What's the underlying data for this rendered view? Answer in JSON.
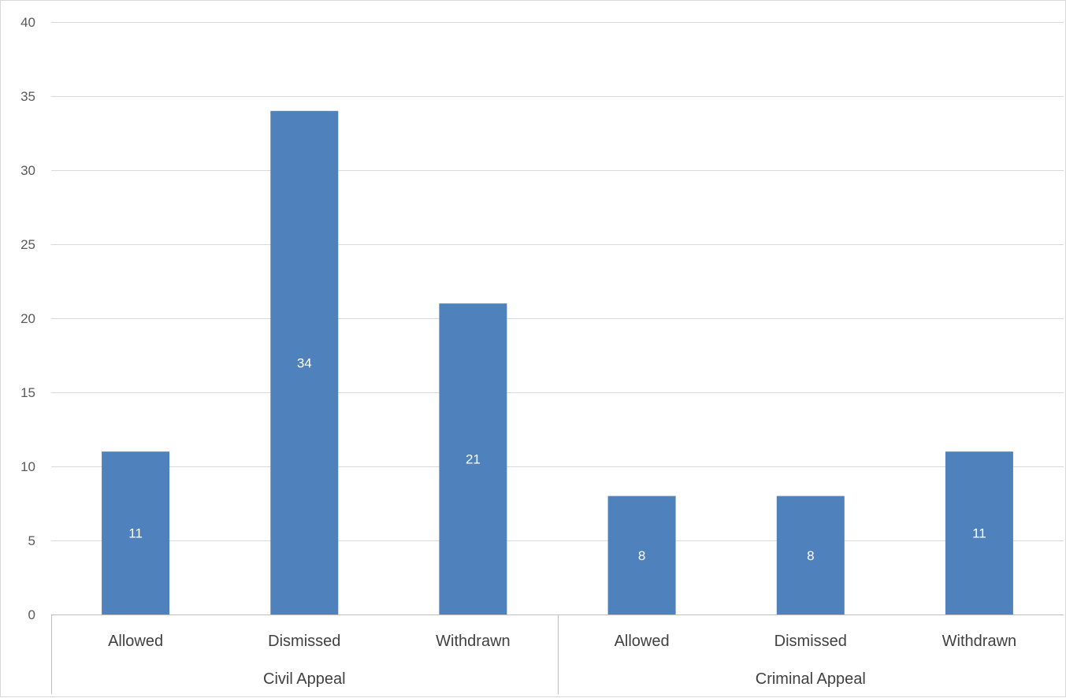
{
  "chart_data": {
    "type": "bar",
    "groups": [
      {
        "name": "Civil Appeal",
        "categories": [
          "Allowed",
          "Dismissed",
          "Withdrawn"
        ],
        "values": [
          11,
          34,
          21
        ]
      },
      {
        "name": "Criminal Appeal",
        "categories": [
          "Allowed",
          "Dismissed",
          "Withdrawn"
        ],
        "values": [
          8,
          8,
          11
        ]
      }
    ],
    "ylim": [
      0,
      40
    ],
    "yticks": [
      0,
      5,
      10,
      15,
      20,
      25,
      30,
      35,
      40
    ],
    "grid": true,
    "legend": "none",
    "title": "",
    "xlabel": "",
    "ylabel": "",
    "data_labels": true,
    "colors": {
      "bar": "#4f81bd",
      "grid": "#d9d9d9",
      "axis": "#bfbfbf",
      "tick_text": "#595959",
      "category_text": "#404040",
      "data_label_text": "#ffffff"
    }
  }
}
